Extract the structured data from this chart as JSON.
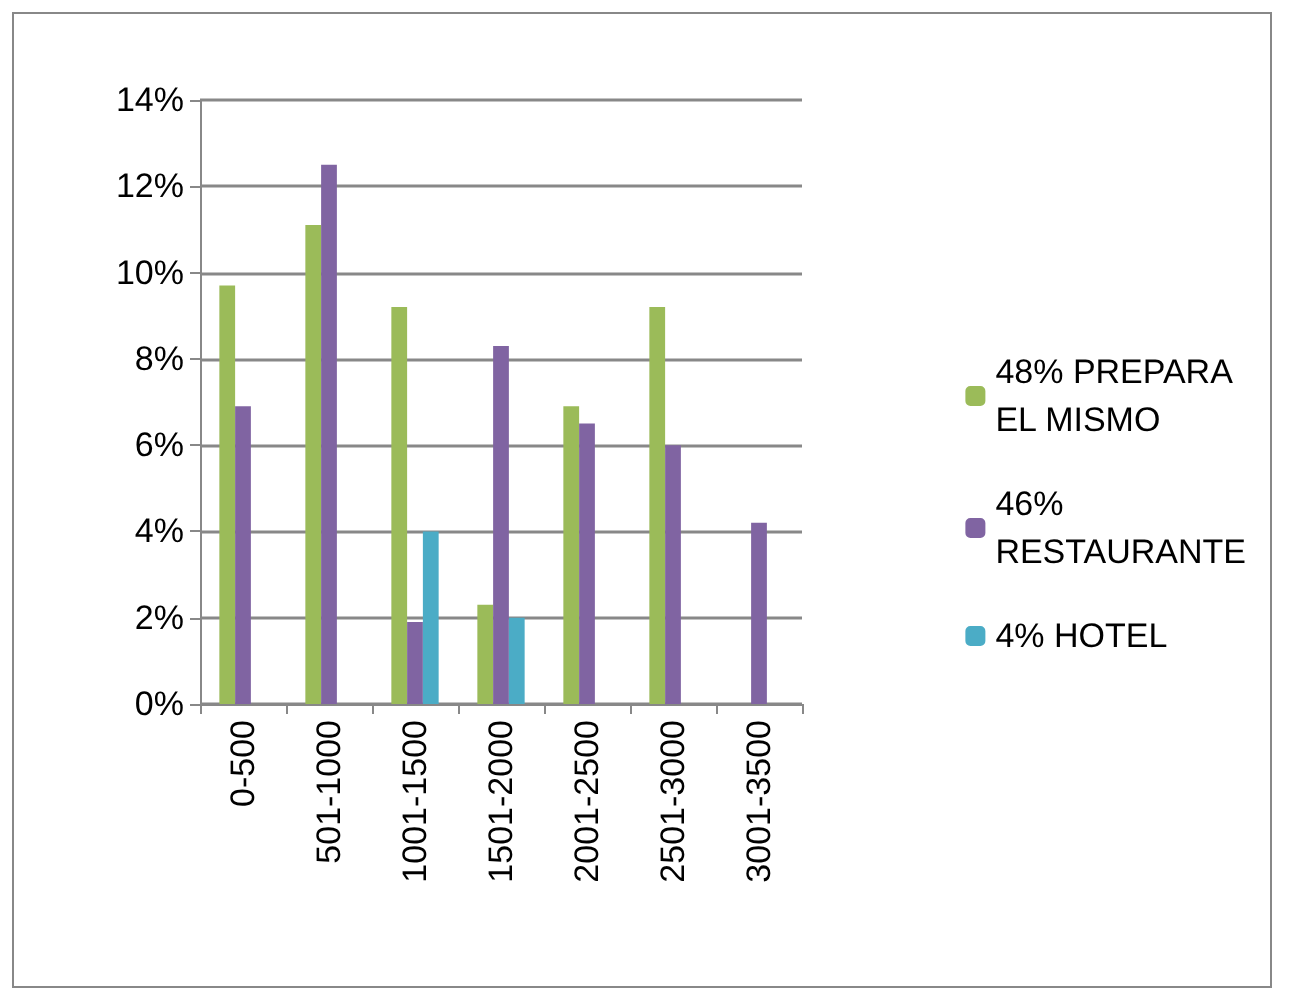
{
  "chart_data": {
    "type": "bar",
    "categories": [
      "0-500",
      "501-1000",
      "1001-1500",
      "1501-2000",
      "2001-2500",
      "2501-3000",
      "3001-3500"
    ],
    "series": [
      {
        "name": "48% PREPARA EL MISMO",
        "color": "#9bbb59",
        "values": [
          9.7,
          11.1,
          9.2,
          2.3,
          6.9,
          9.2,
          0
        ]
      },
      {
        "name": "46% RESTAURANTE",
        "color": "#8064a2",
        "values": [
          6.9,
          12.5,
          1.9,
          8.3,
          6.5,
          6.0,
          4.2
        ]
      },
      {
        "name": "4% HOTEL",
        "color": "#4bacc6",
        "values": [
          null,
          null,
          4.0,
          2.0,
          null,
          null,
          null
        ]
      }
    ],
    "ylim": [
      0,
      14
    ],
    "yticks": [
      {
        "value": 0,
        "label": "0%"
      },
      {
        "value": 2,
        "label": "2%"
      },
      {
        "value": 4,
        "label": "4%"
      },
      {
        "value": 6,
        "label": "6%"
      },
      {
        "value": 8,
        "label": "8%"
      },
      {
        "value": 10,
        "label": "10%"
      },
      {
        "value": 12,
        "label": "12%"
      },
      {
        "value": 14,
        "label": "14%"
      }
    ],
    "grid": "y",
    "legend": "right"
  }
}
